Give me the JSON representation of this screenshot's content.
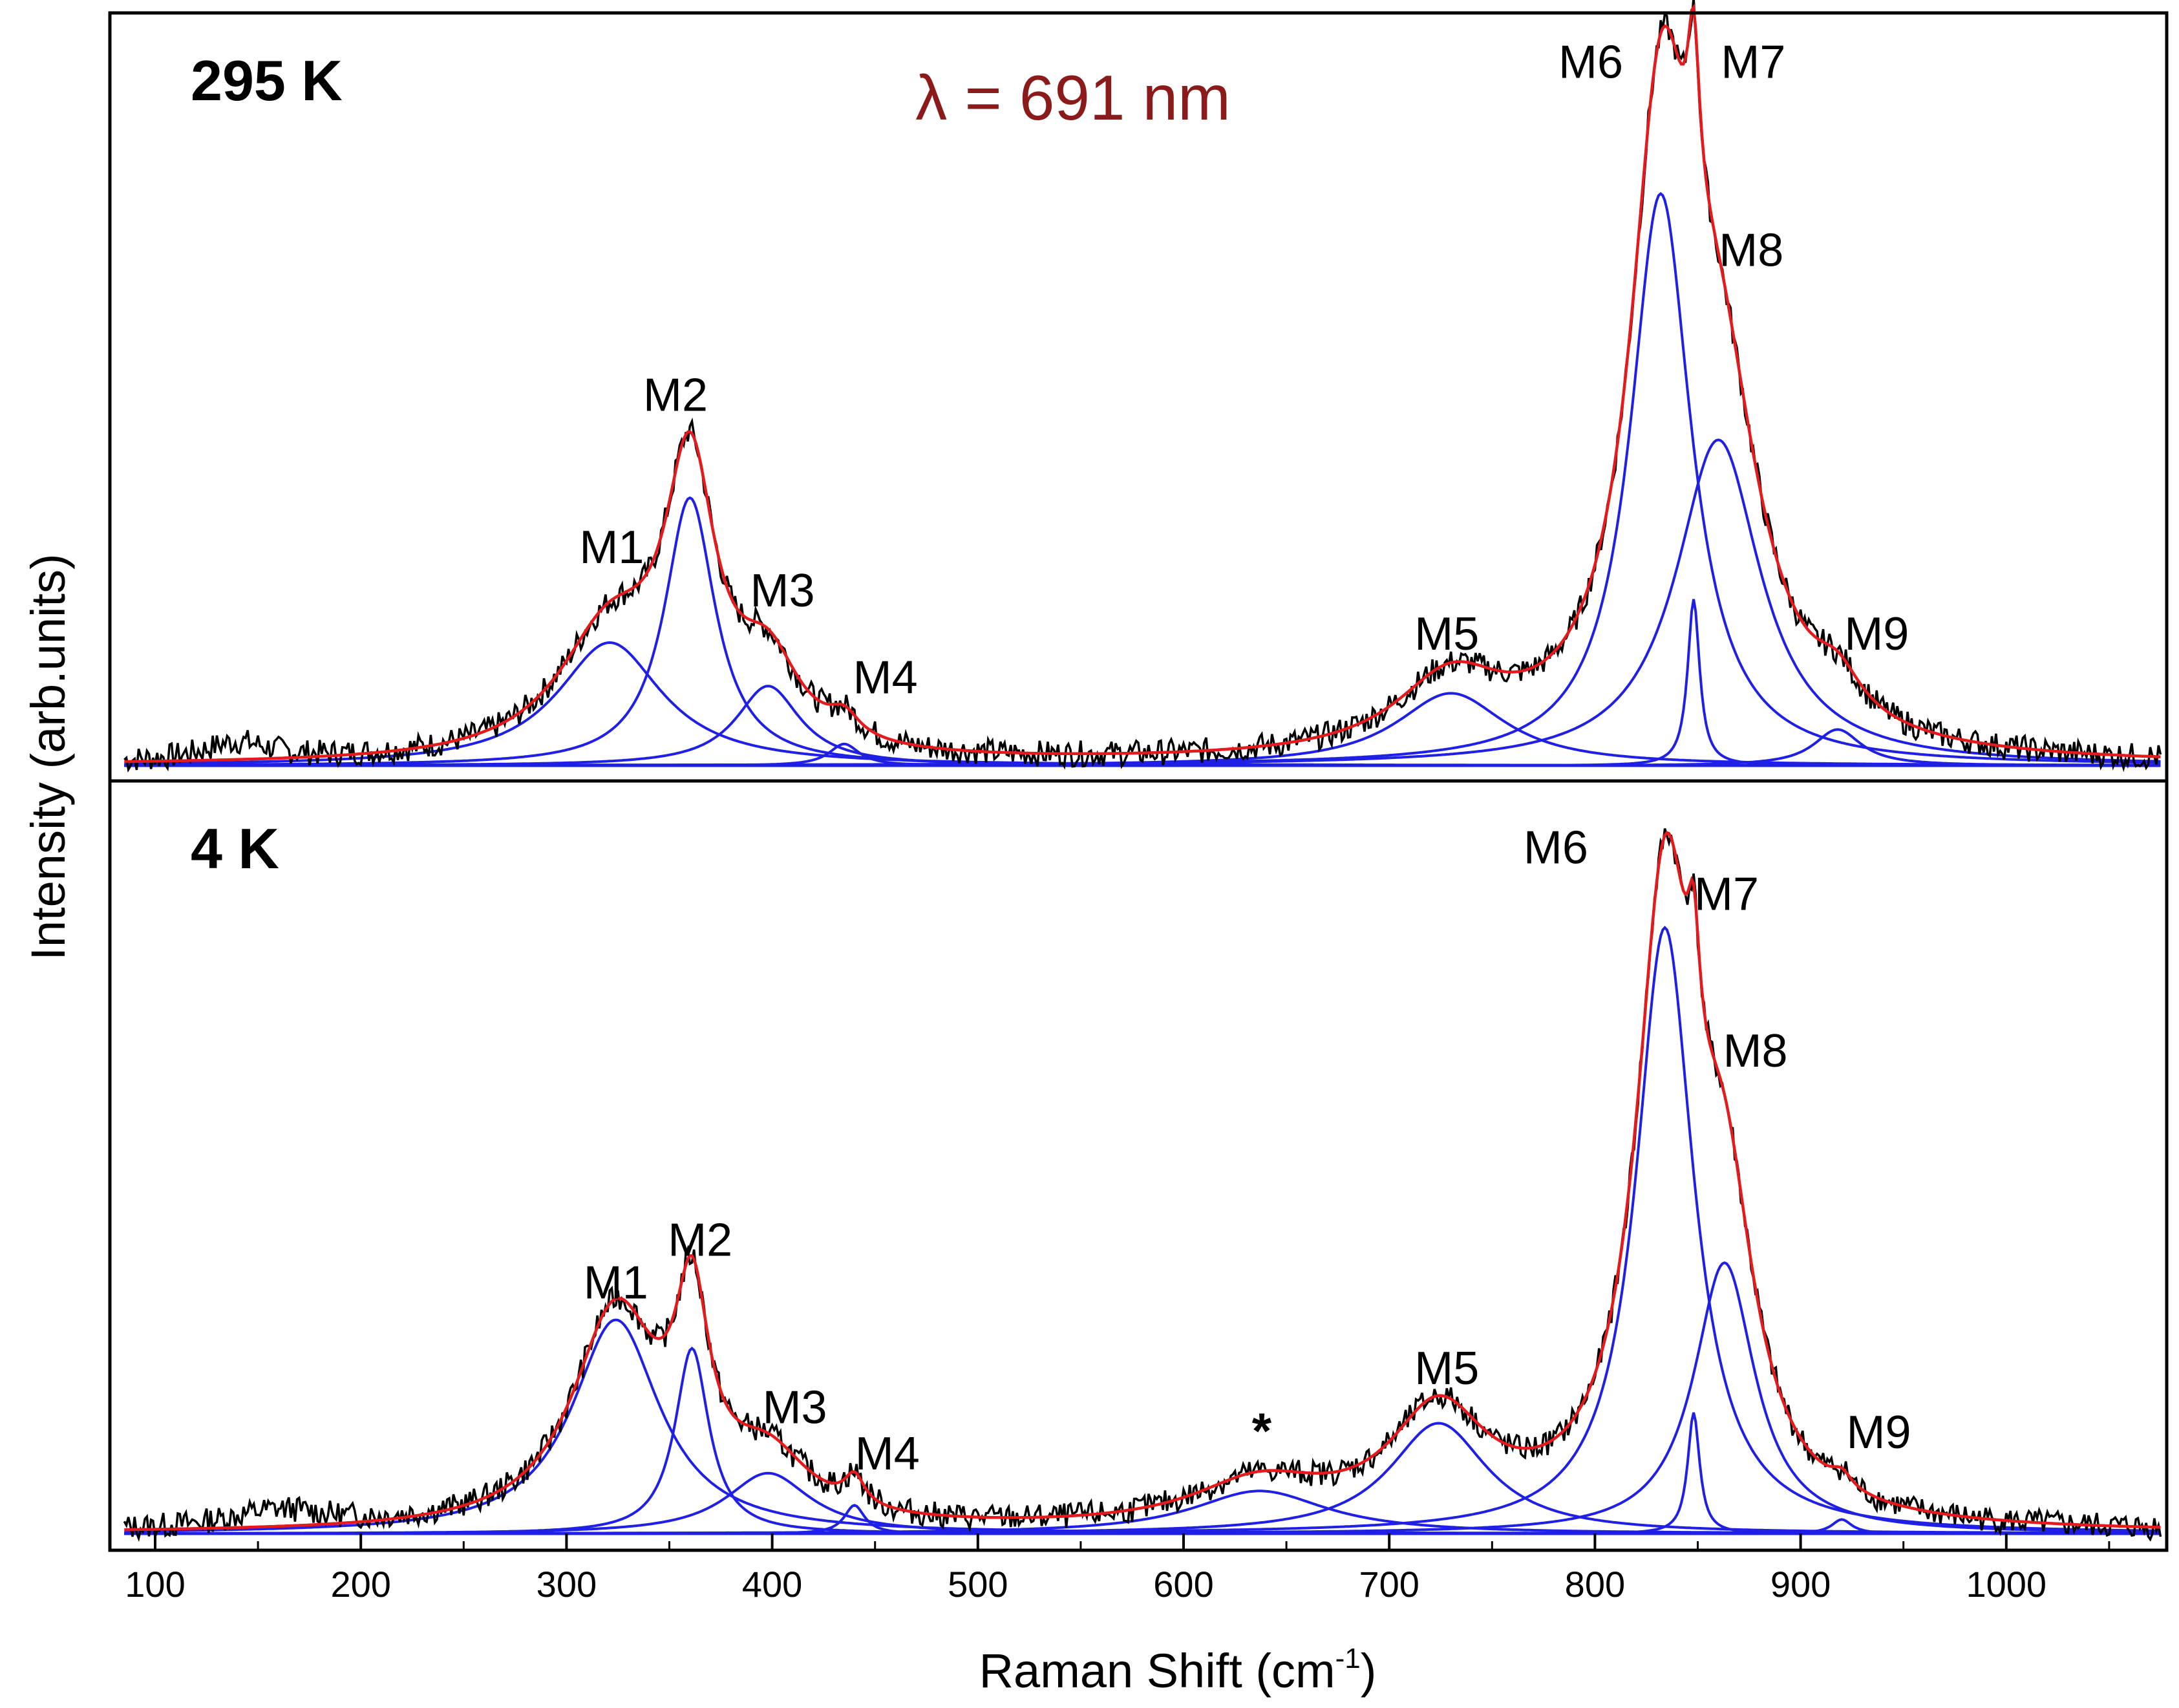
{
  "chart_data": {
    "type": "line",
    "xlabel": "Raman Shift (cm",
    "xlabel_sup": "-1",
    "xlabel_close": ")",
    "ylabel": "Intensity (arb.units)",
    "xlim": [
      78,
      1078
    ],
    "x_ticks": [
      100,
      200,
      300,
      400,
      500,
      600,
      700,
      800,
      900,
      1000
    ],
    "wavelength_label": "λ = 691 nm",
    "colors": {
      "data": "#000000",
      "fit": "#e41a1c",
      "components": "#1f1fe6",
      "annotation": "#8b1a1a"
    },
    "panels": [
      {
        "name": "295 K",
        "temperature_label": "295 K",
        "ylim": [
          0,
          1.0
        ],
        "baseline": 0.005,
        "noise_seed": 7,
        "noise_amp": 0.018,
        "extra_data": [
          {
            "center": 140,
            "width": 40,
            "amp": 0.025
          }
        ],
        "components": [
          {
            "mode": "M1",
            "center": 321,
            "width": 62,
            "amp": 0.17
          },
          {
            "mode": "M2",
            "center": 360,
            "width": 30,
            "amp": 0.37
          },
          {
            "mode": "M3",
            "center": 398,
            "width": 38,
            "amp": 0.11
          },
          {
            "mode": "M4",
            "center": 435,
            "width": 18,
            "amp": 0.03
          },
          {
            "mode": "M5",
            "center": 730,
            "width": 65,
            "amp": 0.1
          },
          {
            "mode": "M6",
            "center": 832,
            "width": 36,
            "amp": 0.79
          },
          {
            "mode": "M7",
            "center": 848,
            "width": 7,
            "amp": 0.23
          },
          {
            "mode": "M8",
            "center": 860,
            "width": 50,
            "amp": 0.45
          },
          {
            "mode": "M9",
            "center": 918,
            "width": 28,
            "amp": 0.05
          }
        ],
        "labels": [
          {
            "text": "M1",
            "x": 322,
            "y": 0.285
          },
          {
            "text": "M2",
            "x": 353,
            "y": 0.495
          },
          {
            "text": "M3",
            "x": 405,
            "y": 0.225
          },
          {
            "text": "M4",
            "x": 455,
            "y": 0.105
          },
          {
            "text": "M5",
            "x": 728,
            "y": 0.165
          },
          {
            "text": "M6",
            "x": 798,
            "y": 0.955
          },
          {
            "text": "M7",
            "x": 877,
            "y": 0.955
          },
          {
            "text": "M8",
            "x": 876,
            "y": 0.695
          },
          {
            "text": "M9",
            "x": 937,
            "y": 0.165
          }
        ]
      },
      {
        "name": "4 K",
        "temperature_label": "4 K",
        "ylim": [
          0,
          1.0
        ],
        "baseline": 0.005,
        "noise_seed": 13,
        "noise_amp": 0.018,
        "extra_data": [
          {
            "center": 160,
            "width": 60,
            "amp": 0.025
          }
        ],
        "components": [
          {
            "mode": "M1",
            "center": 324,
            "width": 52,
            "amp": 0.3
          },
          {
            "mode": "M2",
            "center": 361,
            "width": 20,
            "amp": 0.26
          },
          {
            "mode": "M3",
            "center": 398,
            "width": 50,
            "amp": 0.085
          },
          {
            "mode": "M4",
            "center": 440,
            "width": 12,
            "amp": 0.04
          },
          {
            "mode": "*",
            "center": 637,
            "width": 80,
            "amp": 0.06
          },
          {
            "mode": "M5",
            "center": 724,
            "width": 58,
            "amp": 0.155
          },
          {
            "mode": "M6",
            "center": 834,
            "width": 34,
            "amp": 0.85
          },
          {
            "mode": "M7",
            "center": 848,
            "width": 7,
            "amp": 0.17
          },
          {
            "mode": "M8",
            "center": 863,
            "width": 36,
            "amp": 0.38
          },
          {
            "mode": "M9",
            "center": 920,
            "width": 12,
            "amp": 0.02
          }
        ],
        "labels": [
          {
            "text": "M1",
            "x": 324,
            "y": 0.335
          },
          {
            "text": "M2",
            "x": 365,
            "y": 0.395
          },
          {
            "text": "M3",
            "x": 411,
            "y": 0.16
          },
          {
            "text": "M4",
            "x": 456,
            "y": 0.095
          },
          {
            "text": "*",
            "x": 638,
            "y": 0.125
          },
          {
            "text": "M5",
            "x": 728,
            "y": 0.215
          },
          {
            "text": "M6",
            "x": 781,
            "y": 0.945
          },
          {
            "text": "M7",
            "x": 864,
            "y": 0.88
          },
          {
            "text": "M8",
            "x": 878,
            "y": 0.66
          },
          {
            "text": "M9",
            "x": 938,
            "y": 0.125
          }
        ]
      }
    ]
  }
}
